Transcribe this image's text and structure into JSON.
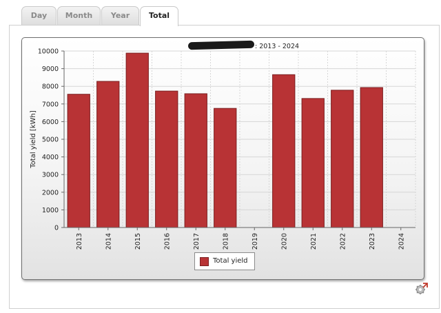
{
  "tabs": [
    {
      "label": "Day",
      "active": false
    },
    {
      "label": "Month",
      "active": false
    },
    {
      "label": "Year",
      "active": false
    },
    {
      "label": "Total",
      "active": true
    }
  ],
  "colors": {
    "bar": "#b83335",
    "bar_border": "#7a1f20",
    "grid": "#d6d6d6"
  },
  "chart_data": {
    "type": "bar",
    "title": ": 2013 - 2024",
    "title_redacted": true,
    "xlabel": "",
    "ylabel": "Total yield [kWh]",
    "categories": [
      "2013",
      "2014",
      "2015",
      "2016",
      "2017",
      "2018",
      "2019",
      "2020",
      "2021",
      "2022",
      "2023",
      "2024"
    ],
    "series": [
      {
        "name": "Total yield",
        "values": [
          7550,
          8280,
          9880,
          7730,
          7580,
          6750,
          null,
          8660,
          7310,
          7780,
          7930,
          null
        ]
      }
    ],
    "ylim": [
      0,
      10000
    ],
    "yticks": [
      0,
      1000,
      2000,
      3000,
      4000,
      5000,
      6000,
      7000,
      8000,
      9000,
      10000
    ],
    "grid": true,
    "legend_position": "bottom-center"
  },
  "icons": {
    "export": "export-gear-icon"
  }
}
